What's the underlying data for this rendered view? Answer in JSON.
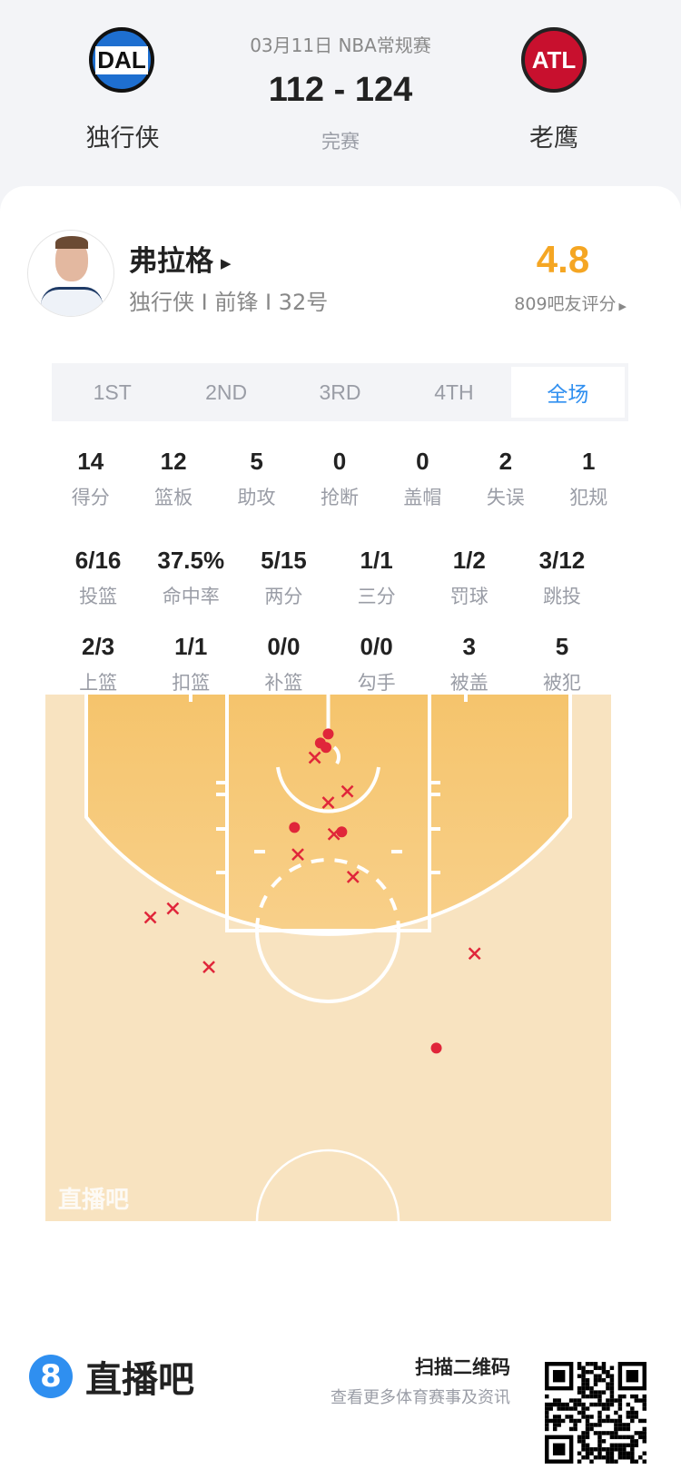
{
  "match": {
    "date_league": "03月11日 NBA常规赛",
    "score": "112 - 124",
    "status": "完赛",
    "home": {
      "abbr": "DAL",
      "name": "独行侠",
      "color": "#1e6fd0"
    },
    "away": {
      "abbr": "ATL",
      "name": "老鹰",
      "color": "#c8102e"
    }
  },
  "player": {
    "name": "弗拉格",
    "info": "独行侠 I 前锋 I 32号",
    "rating": "4.8",
    "rating_count": "809吧友评分",
    "rating_color": "#f5a623"
  },
  "tabs": [
    {
      "label": "1ST"
    },
    {
      "label": "2ND"
    },
    {
      "label": "3RD"
    },
    {
      "label": "4TH"
    },
    {
      "label": "全场",
      "active": true
    }
  ],
  "stats_row1": [
    {
      "v": "14",
      "l": "得分"
    },
    {
      "v": "12",
      "l": "篮板"
    },
    {
      "v": "5",
      "l": "助攻"
    },
    {
      "v": "0",
      "l": "抢断"
    },
    {
      "v": "0",
      "l": "盖帽"
    },
    {
      "v": "2",
      "l": "失误"
    },
    {
      "v": "1",
      "l": "犯规"
    }
  ],
  "stats_row2": [
    {
      "v": "6/16",
      "l": "投篮"
    },
    {
      "v": "37.5%",
      "l": "命中率"
    },
    {
      "v": "5/15",
      "l": "两分"
    },
    {
      "v": "1/1",
      "l": "三分"
    },
    {
      "v": "1/2",
      "l": "罚球"
    },
    {
      "v": "3/12",
      "l": "跳投"
    }
  ],
  "stats_row3": [
    {
      "v": "2/3",
      "l": "上篮"
    },
    {
      "v": "1/1",
      "l": "扣篮"
    },
    {
      "v": "0/0",
      "l": "补篮"
    },
    {
      "v": "0/0",
      "l": "勾手"
    },
    {
      "v": "3",
      "l": "被盖"
    },
    {
      "v": "5",
      "l": "被犯"
    }
  ],
  "shot_chart": {
    "watermark": "直播吧",
    "made_color": "#e0263a",
    "units": "feet (x from center line, y from baseline)",
    "shots": [
      {
        "x": 0.0,
        "y": 3.5,
        "made": true
      },
      {
        "x": -0.7,
        "y": 4.3,
        "made": true
      },
      {
        "x": -0.2,
        "y": 4.7,
        "made": true
      },
      {
        "x": -3.0,
        "y": 11.8,
        "made": true
      },
      {
        "x": 1.2,
        "y": 12.2,
        "made": true
      },
      {
        "x": 9.6,
        "y": 31.4,
        "made": true
      },
      {
        "x": -1.2,
        "y": 5.6,
        "made": false
      },
      {
        "x": 1.7,
        "y": 8.6,
        "made": false
      },
      {
        "x": 0.0,
        "y": 9.6,
        "made": false
      },
      {
        "x": 0.5,
        "y": 12.4,
        "made": false
      },
      {
        "x": -2.7,
        "y": 14.2,
        "made": false
      },
      {
        "x": 2.2,
        "y": 16.2,
        "made": false
      },
      {
        "x": -15.8,
        "y": 19.8,
        "made": false
      },
      {
        "x": -13.8,
        "y": 19.0,
        "made": false
      },
      {
        "x": -10.6,
        "y": 24.2,
        "made": false
      },
      {
        "x": 13.0,
        "y": 23.0,
        "made": false
      }
    ]
  },
  "footer": {
    "brand": "直播吧",
    "brand_badge": "8",
    "qr_title": "扫描二维码",
    "qr_subtitle": "查看更多体育赛事及资讯",
    "accent": "#2f8ff0"
  }
}
